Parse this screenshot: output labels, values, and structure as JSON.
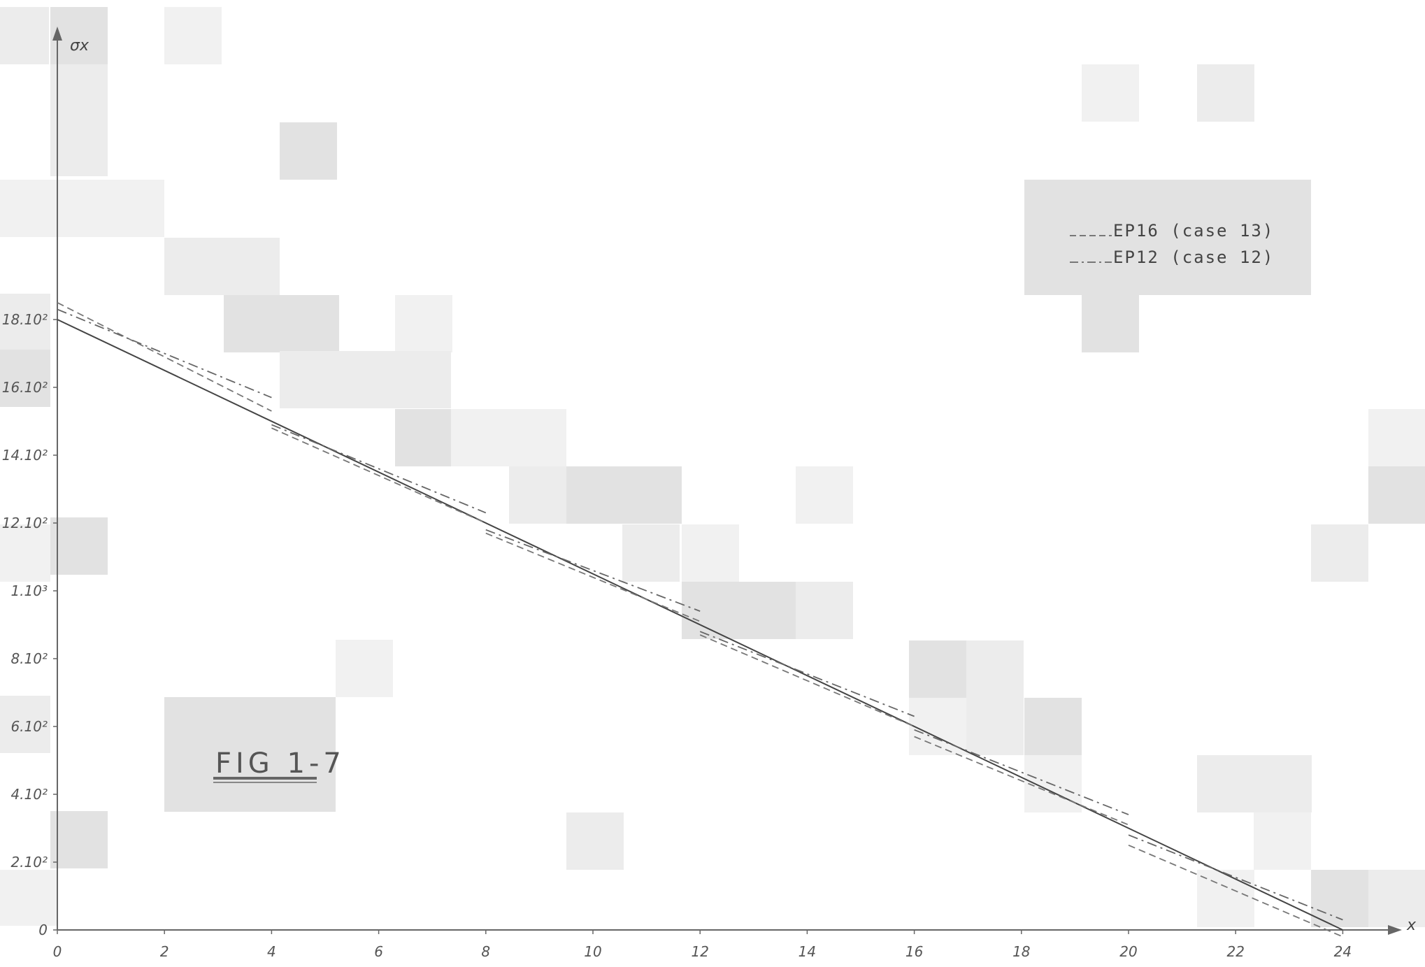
{
  "chart_data": {
    "type": "line",
    "title": "",
    "figure_label": "FIG 1-7",
    "xlabel": "x",
    "ylabel": "σx",
    "xlim": [
      0,
      25
    ],
    "ylim": [
      0,
      20
    ],
    "x_ticks": [
      {
        "v": 0,
        "label": "0"
      },
      {
        "v": 2,
        "label": "2"
      },
      {
        "v": 4,
        "label": "4"
      },
      {
        "v": 6,
        "label": "6"
      },
      {
        "v": 8,
        "label": "8"
      },
      {
        "v": 10,
        "label": "10"
      },
      {
        "v": 12,
        "label": "12"
      },
      {
        "v": 14,
        "label": "14"
      },
      {
        "v": 16,
        "label": "16"
      },
      {
        "v": 18,
        "label": "18"
      },
      {
        "v": 20,
        "label": "20"
      },
      {
        "v": 22,
        "label": "22"
      },
      {
        "v": 24,
        "label": "24"
      }
    ],
    "y_ticks": [
      {
        "v": 0,
        "label": "0"
      },
      {
        "v": 2,
        "label": "2.10²"
      },
      {
        "v": 4,
        "label": "4.10²"
      },
      {
        "v": 6,
        "label": "6.10²"
      },
      {
        "v": 8,
        "label": "8.10²"
      },
      {
        "v": 10,
        "label": "1.10³"
      },
      {
        "v": 12,
        "label": "12.10²"
      },
      {
        "v": 14,
        "label": "14.10²"
      },
      {
        "v": 16,
        "label": "16.10²"
      },
      {
        "v": 18,
        "label": "18.10²"
      }
    ],
    "grid": false,
    "legend_position": "top-right",
    "legend": [
      {
        "label": "EP16 (case 13)",
        "style": "dashed"
      },
      {
        "label": "EP12 (case 12)",
        "style": "dash-dot"
      }
    ],
    "series": [
      {
        "style": "solid",
        "segments": [
          [
            [
              0,
              18.0
            ],
            [
              24,
              0.0
            ]
          ]
        ]
      },
      {
        "name": "EP16 (case 13)",
        "style": "dashed",
        "segments": [
          [
            [
              0,
              18.5
            ],
            [
              4,
              15.3
            ]
          ],
          [
            [
              4,
              14.8
            ],
            [
              8,
              12.0
            ]
          ],
          [
            [
              8,
              11.7
            ],
            [
              12,
              9.1
            ]
          ],
          [
            [
              12,
              8.7
            ],
            [
              16,
              6.0
            ]
          ],
          [
            [
              16,
              5.7
            ],
            [
              20,
              3.1
            ]
          ],
          [
            [
              20,
              2.5
            ],
            [
              24,
              -0.2
            ]
          ]
        ]
      },
      {
        "name": "EP12 (case 12)",
        "style": "dash-dot",
        "segments": [
          [
            [
              0,
              18.3
            ],
            [
              4,
              15.7
            ]
          ],
          [
            [
              4,
              14.9
            ],
            [
              8,
              12.3
            ]
          ],
          [
            [
              8,
              11.8
            ],
            [
              12,
              9.4
            ]
          ],
          [
            [
              12,
              8.8
            ],
            [
              16,
              6.3
            ]
          ],
          [
            [
              16,
              5.9
            ],
            [
              20,
              3.4
            ]
          ],
          [
            [
              20,
              2.8
            ],
            [
              24,
              0.3
            ]
          ]
        ]
      }
    ]
  }
}
